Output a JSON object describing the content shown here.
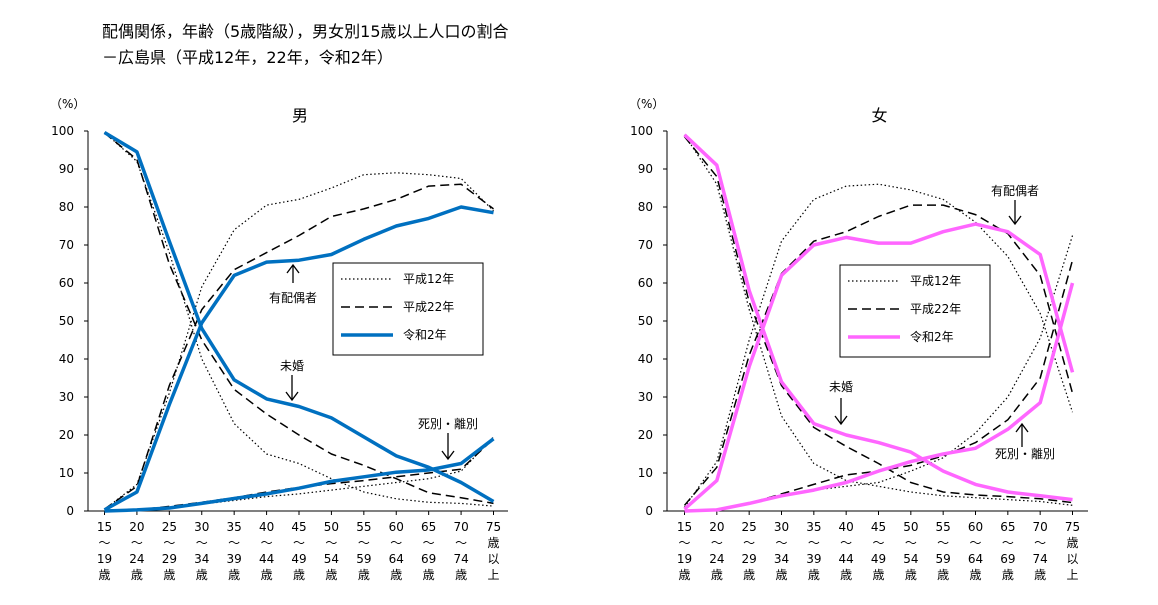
{
  "title": {
    "line1": "配偶関係，年齢（5歳階級），男女別15歳以上人口の割合",
    "line2": "－広島県（平成12年，22年，令和2年）"
  },
  "colors": {
    "reiwa_male": "#0070c0",
    "reiwa_female": "#ff66ff",
    "other": "#000000"
  },
  "legend_entries": [
    "平成12年",
    "平成22年",
    "令和2年"
  ],
  "chart_data": [
    {
      "type": "line",
      "title": "男",
      "ylabel": "（%）",
      "ylim": [
        0,
        100
      ],
      "yticks": [
        0,
        10,
        20,
        30,
        40,
        50,
        60,
        70,
        80,
        90,
        100
      ],
      "categories": [
        [
          "15",
          "～",
          "19",
          "歳"
        ],
        [
          "20",
          "～",
          "24",
          "歳"
        ],
        [
          "25",
          "～",
          "29",
          "歳"
        ],
        [
          "30",
          "～",
          "34",
          "歳"
        ],
        [
          "35",
          "～",
          "39",
          "歳"
        ],
        [
          "40",
          "～",
          "44",
          "歳"
        ],
        [
          "45",
          "～",
          "49",
          "歳"
        ],
        [
          "50",
          "～",
          "54",
          "歳"
        ],
        [
          "55",
          "～",
          "59",
          "歳"
        ],
        [
          "60",
          "～",
          "64",
          "歳"
        ],
        [
          "65",
          "～",
          "69",
          "歳"
        ],
        [
          "70",
          "～",
          "74",
          "歳"
        ],
        [
          "75",
          "歳",
          "以",
          "上"
        ]
      ],
      "legend": "right",
      "annotations": [
        "有配偶者",
        "未婚",
        "死別・離別"
      ],
      "series": [
        {
          "name": "平成12年",
          "status": "未婚",
          "style": "dotted",
          "values": [
            99.6,
            92,
            68,
            40,
            23,
            15,
            12.5,
            8.5,
            5,
            3.2,
            2.3,
            2,
            1.3
          ]
        },
        {
          "name": "平成12年",
          "status": "有配偶者",
          "style": "dotted",
          "values": [
            0.4,
            7,
            31,
            59,
            74,
            80.5,
            82,
            85,
            88.5,
            89,
            88.5,
            87.5,
            79
          ]
        },
        {
          "name": "平成12年",
          "status": "死別・離別",
          "style": "dotted",
          "values": [
            0,
            0.3,
            0.9,
            1.8,
            2.8,
            3.8,
            4.5,
            5.5,
            6.5,
            7.5,
            8.5,
            10.5,
            19.5
          ]
        },
        {
          "name": "平成22年",
          "status": "未婚",
          "style": "dashed",
          "values": [
            99.5,
            92.5,
            65,
            45,
            32,
            25.5,
            20,
            15,
            12,
            8.5,
            4.8,
            3.5,
            2
          ]
        },
        {
          "name": "平成22年",
          "status": "有配偶者",
          "style": "dashed",
          "values": [
            0.5,
            6.5,
            33,
            53,
            63.5,
            68,
            72.5,
            77.5,
            79.5,
            82,
            85.5,
            86,
            79.5
          ]
        },
        {
          "name": "平成22年",
          "status": "死別・離別",
          "style": "dashed",
          "values": [
            0,
            0.3,
            1.2,
            2.3,
            3.5,
            5,
            6.2,
            7.2,
            8,
            9,
            10,
            11,
            19
          ]
        },
        {
          "name": "令和2年",
          "status": "未婚",
          "style": "solid",
          "values": [
            99.6,
            94.5,
            71,
            48,
            34.5,
            29.5,
            27.5,
            24.5,
            19.5,
            14.5,
            11.5,
            7.5,
            2.5
          ]
        },
        {
          "name": "令和2年",
          "status": "有配偶者",
          "style": "solid",
          "values": [
            0.3,
            5,
            28,
            49.5,
            62,
            65.5,
            66,
            67.5,
            71.5,
            75,
            77,
            80,
            78.5
          ]
        },
        {
          "name": "令和2年",
          "status": "死別・離別",
          "style": "solid",
          "values": [
            0,
            0.3,
            0.8,
            2,
            3.3,
            4.5,
            6,
            7.8,
            9,
            10.2,
            10.8,
            12.5,
            19
          ]
        }
      ]
    },
    {
      "type": "line",
      "title": "女",
      "ylabel": "（%）",
      "ylim": [
        0,
        100
      ],
      "yticks": [
        0,
        10,
        20,
        30,
        40,
        50,
        60,
        70,
        80,
        90,
        100
      ],
      "categories": [
        [
          "15",
          "～",
          "19",
          "歳"
        ],
        [
          "20",
          "～",
          "24",
          "歳"
        ],
        [
          "25",
          "～",
          "29",
          "歳"
        ],
        [
          "30",
          "～",
          "34",
          "歳"
        ],
        [
          "35",
          "～",
          "39",
          "歳"
        ],
        [
          "40",
          "～",
          "44",
          "歳"
        ],
        [
          "45",
          "～",
          "49",
          "歳"
        ],
        [
          "50",
          "～",
          "54",
          "歳"
        ],
        [
          "55",
          "～",
          "59",
          "歳"
        ],
        [
          "60",
          "～",
          "64",
          "歳"
        ],
        [
          "65",
          "～",
          "69",
          "歳"
        ],
        [
          "70",
          "～",
          "74",
          "歳"
        ],
        [
          "75",
          "歳",
          "以",
          "上"
        ]
      ],
      "legend": "center",
      "annotations": [
        "有配偶者",
        "未婚",
        "死別・離別"
      ],
      "series": [
        {
          "name": "平成12年",
          "status": "未婚",
          "style": "dotted",
          "values": [
            99,
            86,
            53,
            25,
            12.5,
            8,
            6.5,
            5,
            4,
            3.5,
            3,
            2.5,
            1.5
          ]
        },
        {
          "name": "平成12年",
          "status": "有配偶者",
          "style": "dotted",
          "values": [
            1,
            13,
            45,
            71,
            82,
            85.5,
            86,
            84.5,
            82,
            76,
            67,
            52,
            26
          ]
        },
        {
          "name": "平成12年",
          "status": "死別・離別",
          "style": "dotted",
          "values": [
            0,
            0.5,
            2,
            4,
            5.5,
            6.5,
            7.5,
            10.5,
            14,
            20.5,
            30,
            45.5,
            72.5
          ]
        },
        {
          "name": "平成22年",
          "status": "未婚",
          "style": "dashed",
          "values": [
            98.5,
            88,
            55,
            33,
            22,
            17,
            12.5,
            7.5,
            5,
            4.2,
            3.8,
            3.2,
            2.2
          ]
        },
        {
          "name": "平成22年",
          "status": "有配偶者",
          "style": "dashed",
          "values": [
            1.5,
            11.5,
            41,
            62.5,
            71,
            73.5,
            77.5,
            80.5,
            80.5,
            78,
            73,
            62,
            31
          ]
        },
        {
          "name": "平成22年",
          "status": "死別・離別",
          "style": "dashed",
          "values": [
            0,
            0.5,
            2,
            4.5,
            7,
            9.5,
            10.5,
            12,
            14.5,
            18,
            24,
            35,
            66
          ]
        },
        {
          "name": "令和2年",
          "status": "未婚",
          "style": "solid",
          "values": [
            99,
            91,
            58,
            34,
            23,
            20,
            18,
            15.5,
            10.5,
            7,
            5,
            4,
            3
          ]
        },
        {
          "name": "令和2年",
          "status": "有配偶者",
          "style": "solid",
          "values": [
            0.5,
            8,
            38,
            62,
            70,
            72,
            70.5,
            70.5,
            73.5,
            75.5,
            73.5,
            67.5,
            36.5
          ]
        },
        {
          "name": "令和2年",
          "status": "死別・離別",
          "style": "solid",
          "values": [
            0,
            0.3,
            2,
            4,
            5.5,
            7.5,
            10.5,
            13,
            15,
            16.5,
            21.5,
            28.5,
            60
          ]
        }
      ]
    }
  ]
}
